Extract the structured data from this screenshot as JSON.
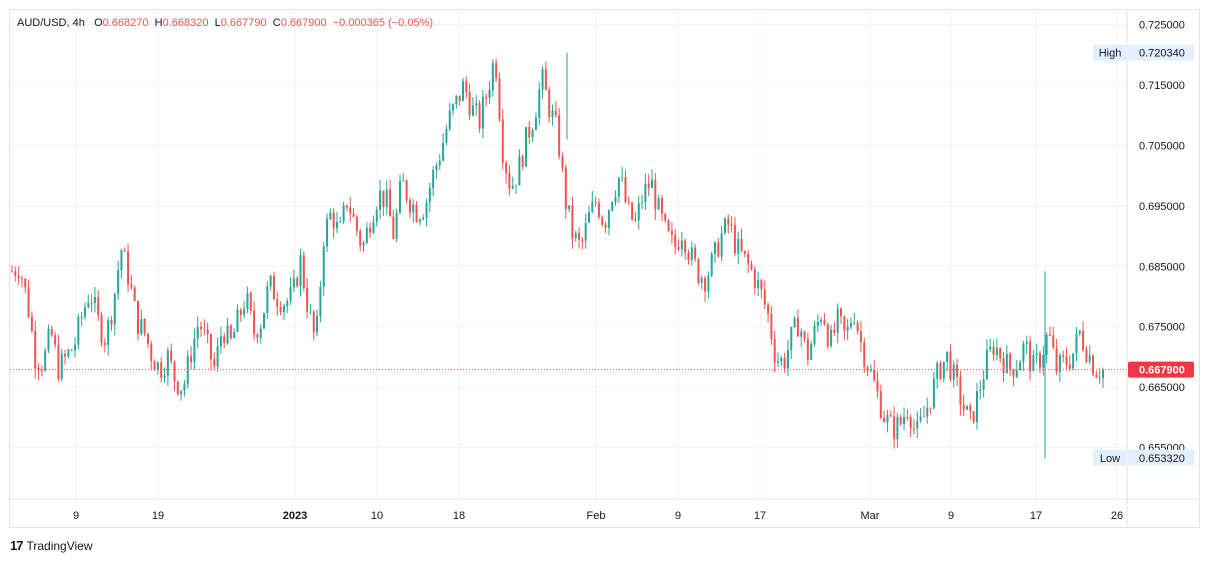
{
  "legend": {
    "symbol": "AUD/USD",
    "interval": "4h",
    "o_label": "O",
    "o_value": "0.668270",
    "h_label": "H",
    "h_value": "0.668320",
    "l_label": "L",
    "l_value": "0.667790",
    "c_label": "C",
    "c_value": "0.667900",
    "change": "−0.000365 (−0.05%)"
  },
  "markers": {
    "high_label": "High",
    "high_value": "0.720340",
    "low_label": "Low",
    "low_value": "0.653320",
    "last_value": "0.667900"
  },
  "footer": {
    "brand": "TradingView"
  },
  "colors": {
    "up": "#26a69a",
    "down": "#ef5350",
    "grid": "#f0f3fa",
    "axis_text": "#131722",
    "last_price_bg": "#f23645",
    "marker_bg": "#e3effd"
  },
  "chart_data": {
    "type": "candlestick",
    "title": "AUD/USD, 4h",
    "ylim": [
      0.6465,
      0.7274
    ],
    "y_ticks": [
      "0.725000",
      "0.715000",
      "0.705000",
      "0.695000",
      "0.685000",
      "0.675000",
      "0.665000",
      "0.655000"
    ],
    "x_ticks": [
      "9",
      "19",
      "2023",
      "10",
      "18",
      "Feb",
      "9",
      "17",
      "Mar",
      "9",
      "17",
      "26"
    ],
    "x_tick_bold": [
      "2023"
    ],
    "series": [
      {
        "name": "AUD/USD",
        "path": [
          0.6842,
          0.685,
          0.679,
          0.67,
          0.669,
          0.674,
          0.668,
          0.67,
          0.672,
          0.677,
          0.681,
          0.676,
          0.673,
          0.679,
          0.688,
          0.683,
          0.676,
          0.674,
          0.67,
          0.668,
          0.67,
          0.666,
          0.665,
          0.671,
          0.676,
          0.672,
          0.668,
          0.675,
          0.672,
          0.676,
          0.68,
          0.674,
          0.676,
          0.682,
          0.68,
          0.679,
          0.68,
          0.686,
          0.678,
          0.672,
          0.69,
          0.694,
          0.69,
          0.696,
          0.692,
          0.688,
          0.693,
          0.697,
          0.696,
          0.69,
          0.699,
          0.696,
          0.694,
          0.695,
          0.7,
          0.704,
          0.709,
          0.712,
          0.715,
          0.711,
          0.709,
          0.714,
          0.72,
          0.704,
          0.698,
          0.701,
          0.706,
          0.71,
          0.716,
          0.711,
          0.707,
          0.696,
          0.69,
          0.688,
          0.693,
          0.696,
          0.692,
          0.697,
          0.7,
          0.694,
          0.692,
          0.697,
          0.699,
          0.694,
          0.69,
          0.688,
          0.691,
          0.687,
          0.684,
          0.683,
          0.686,
          0.69,
          0.692,
          0.688,
          0.686,
          0.684,
          0.681,
          0.677,
          0.67,
          0.669,
          0.673,
          0.676,
          0.67,
          0.674,
          0.678,
          0.672,
          0.676,
          0.673,
          0.678,
          0.672,
          0.668,
          0.664,
          0.66,
          0.658,
          0.659,
          0.662,
          0.657,
          0.66,
          0.664,
          0.668,
          0.67,
          0.666,
          0.662,
          0.659,
          0.664,
          0.669,
          0.672,
          0.67,
          0.668,
          0.669,
          0.672,
          0.668,
          0.67,
          0.674,
          0.668,
          0.669,
          0.67,
          0.674,
          0.671,
          0.668,
          0.6679
        ]
      }
    ],
    "high": 0.72034,
    "low": 0.65332,
    "last": 0.6679
  }
}
